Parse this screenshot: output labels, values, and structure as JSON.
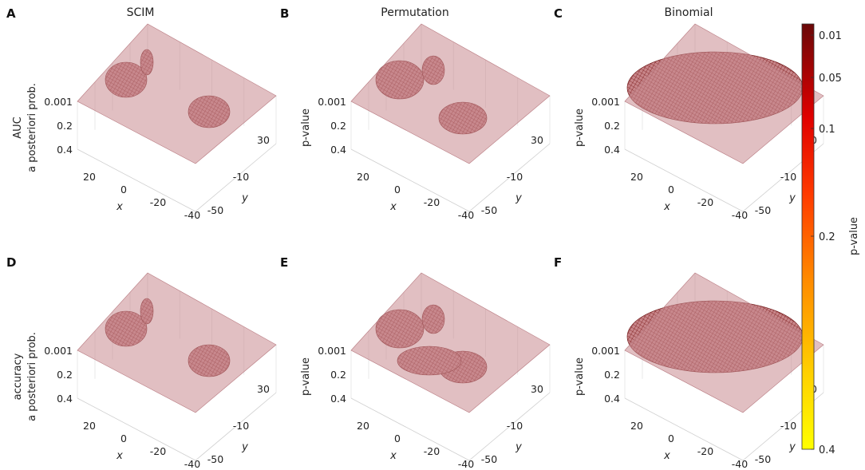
{
  "chart_data": {
    "type": "surface3d",
    "columns": [
      "SCIM",
      "Permutation",
      "Binomial"
    ],
    "panels": [
      {
        "letter": "A",
        "row": 0,
        "col": 0,
        "zlabel_lines": [
          "AUC",
          "a posteriori prob."
        ],
        "method": "SCIM",
        "metric": "AUC",
        "spread": 0.45,
        "threshold_plane": 0.001
      },
      {
        "letter": "B",
        "row": 0,
        "col": 1,
        "zlabel_lines": [
          "p-value"
        ],
        "method": "Permutation",
        "metric": "AUC",
        "spread": 0.6,
        "threshold_plane": 0.001
      },
      {
        "letter": "C",
        "row": 0,
        "col": 2,
        "zlabel_lines": [
          "p-value"
        ],
        "method": "Binomial",
        "metric": "AUC",
        "spread": 1.0,
        "threshold_plane": 0.001
      },
      {
        "letter": "D",
        "row": 1,
        "col": 0,
        "zlabel_lines": [
          "accuracy",
          "a posteriori prob."
        ],
        "method": "SCIM",
        "metric": "accuracy",
        "spread": 0.45,
        "threshold_plane": 0.001
      },
      {
        "letter": "E",
        "row": 1,
        "col": 1,
        "zlabel_lines": [
          "p-value"
        ],
        "method": "Permutation",
        "metric": "accuracy",
        "spread": 0.8,
        "threshold_plane": 0.001
      },
      {
        "letter": "F",
        "row": 1,
        "col": 2,
        "zlabel_lines": [
          "p-value"
        ],
        "method": "Binomial",
        "metric": "accuracy",
        "spread": 1.0,
        "threshold_plane": 0.001
      }
    ],
    "z_ticks": [
      "0.001",
      "0.2",
      "0.4"
    ],
    "x_ticks": [
      "20",
      "0",
      "-20",
      "-40"
    ],
    "y_ticks": [
      "-50",
      "-10",
      "30"
    ],
    "xlabel": "x",
    "ylabel": "y",
    "colorbar": {
      "label": "p-value",
      "ticks": [
        "0.01",
        "0.05",
        "0.1",
        "0.2",
        "0.4"
      ],
      "colormap": [
        "#7a0a0a",
        "#c40000",
        "#ff1a00",
        "#ff6a00",
        "#ffb000",
        "#ffff00"
      ]
    },
    "plane_color": "#c98a8f"
  }
}
